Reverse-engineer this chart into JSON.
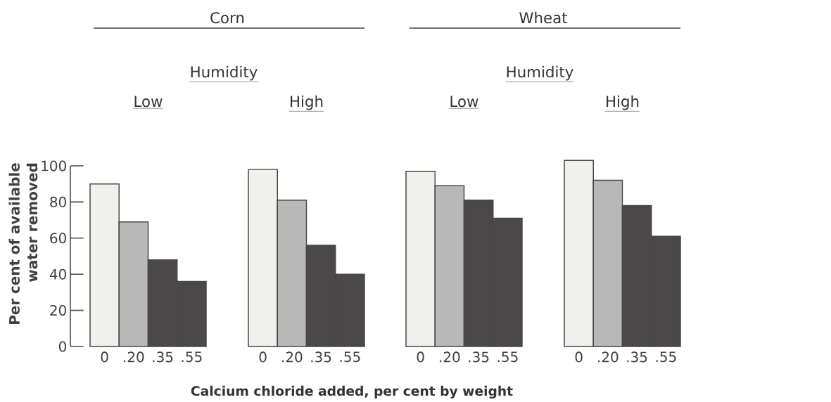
{
  "chart_data": [
    {
      "type": "bar",
      "title": "Low",
      "ylabel": "Per cent of available water removed",
      "xlabel": "Calcium chloride added, per cent by weight",
      "annotations": [
        "Corn",
        "Humidity"
      ],
      "categories": [
        "0",
        ".20",
        ".35",
        ".55"
      ],
      "values": [
        90,
        69,
        48,
        36
      ],
      "colors": [
        "#f0f0ec",
        "#b8b8b8",
        "#4a4848",
        "#4a4848"
      ],
      "ylim": [
        0,
        100
      ],
      "yticks": [
        0,
        20,
        40,
        60,
        80,
        100
      ]
    },
    {
      "type": "bar",
      "title": "High",
      "categories": [
        "0",
        ".20",
        ".35",
        ".55"
      ],
      "values": [
        98,
        81,
        56,
        40
      ],
      "colors": [
        "#f0f0ec",
        "#b8b8b8",
        "#4a4848",
        "#4a4848"
      ],
      "ylim": [
        0,
        100
      ],
      "yticks": [
        0,
        20,
        40,
        60,
        80,
        100
      ],
      "tick_labels": "x"
    },
    {
      "type": "bar",
      "title": "Low",
      "annotations": [
        "Wheat",
        "Humidity"
      ],
      "categories": [
        "0",
        ".20",
        ".35",
        ".55"
      ],
      "values": [
        97,
        89,
        81,
        71
      ],
      "colors": [
        "#f0f0ec",
        "#b8b8b8",
        "#4a4848",
        "#4a4848"
      ],
      "ylim": [
        0,
        100
      ],
      "yticks": [
        0,
        20,
        40,
        60,
        80,
        100
      ],
      "tick_labels": "x"
    },
    {
      "type": "bar",
      "title": "High",
      "categories": [
        "0",
        ".20",
        ".35",
        ".55"
      ],
      "values": [
        103,
        92,
        78,
        61
      ],
      "colors": [
        "#f0f0ec",
        "#b8b8b8",
        "#4a4848",
        "#4a4848"
      ],
      "ylim": [
        0,
        104
      ],
      "yticks": [
        0,
        20,
        40,
        60,
        80,
        100
      ],
      "tick_labels": "x"
    }
  ]
}
